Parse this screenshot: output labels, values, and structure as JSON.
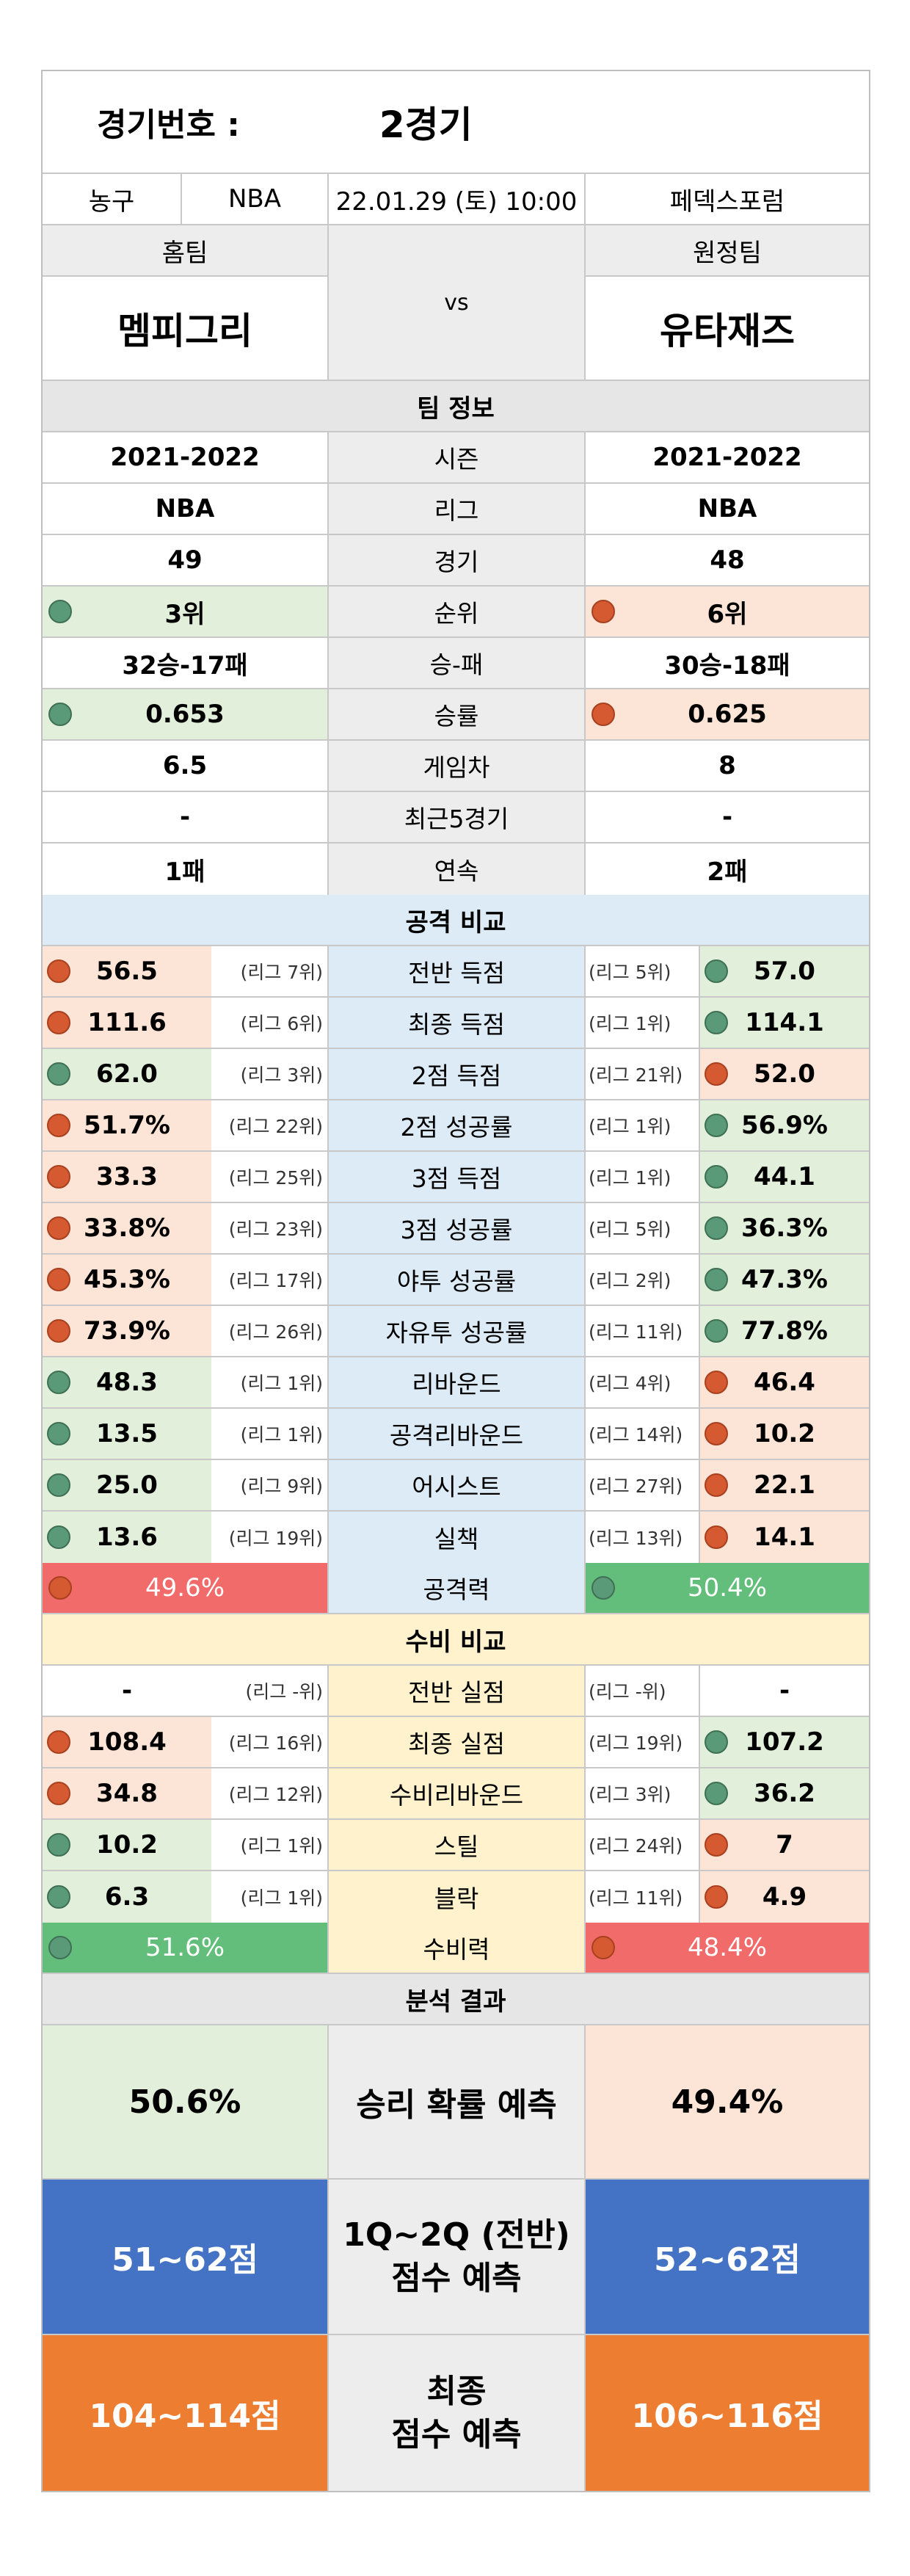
{
  "game": {
    "number_label": "경기번호 :",
    "number_value": "2경기"
  },
  "info": {
    "sport": "농구",
    "league": "NBA",
    "datetime": "22.01.29 (토) 10:00",
    "venue": "페덱스포럼"
  },
  "teams": {
    "home_label": "홈팀",
    "away_label": "원정팀",
    "vs": "vs",
    "home": "멤피그리",
    "away": "유타재즈"
  },
  "team_info": {
    "title": "팀 정보",
    "rows": [
      {
        "label": "시즌",
        "home": "2021-2022",
        "away": "2021-2022"
      },
      {
        "label": "리그",
        "home": "NBA",
        "away": "NBA"
      },
      {
        "label": "경기",
        "home": "49",
        "away": "48"
      },
      {
        "label": "순위",
        "home": "3위",
        "away": "6위",
        "home_mark": "green",
        "away_mark": "red"
      },
      {
        "label": "승-패",
        "home": "32승-17패",
        "away": "30승-18패"
      },
      {
        "label": "승률",
        "home": "0.653",
        "away": "0.625",
        "home_mark": "green",
        "away_mark": "red"
      },
      {
        "label": "게임차",
        "home": "6.5",
        "away": "8"
      },
      {
        "label": "최근5경기",
        "home": "-",
        "away": "-"
      },
      {
        "label": "연속",
        "home": "1패",
        "away": "2패"
      }
    ]
  },
  "attack": {
    "title": "공격 비교",
    "rows": [
      {
        "label": "전반 득점",
        "home": "56.5",
        "home_rank": "(리그 7위)",
        "home_mark": "red",
        "away": "57.0",
        "away_rank": "(리그 5위)",
        "away_mark": "green"
      },
      {
        "label": "최종 득점",
        "home": "111.6",
        "home_rank": "(리그 6위)",
        "home_mark": "red",
        "away": "114.1",
        "away_rank": "(리그 1위)",
        "away_mark": "green"
      },
      {
        "label": "2점 득점",
        "home": "62.0",
        "home_rank": "(리그 3위)",
        "home_mark": "green",
        "away": "52.0",
        "away_rank": "(리그 21위)",
        "away_mark": "red"
      },
      {
        "label": "2점 성공률",
        "home": "51.7%",
        "home_rank": "(리그 22위)",
        "home_mark": "red",
        "away": "56.9%",
        "away_rank": "(리그 1위)",
        "away_mark": "green"
      },
      {
        "label": "3점 득점",
        "home": "33.3",
        "home_rank": "(리그 25위)",
        "home_mark": "red",
        "away": "44.1",
        "away_rank": "(리그 1위)",
        "away_mark": "green"
      },
      {
        "label": "3점 성공률",
        "home": "33.8%",
        "home_rank": "(리그 23위)",
        "home_mark": "red",
        "away": "36.3%",
        "away_rank": "(리그 5위)",
        "away_mark": "green"
      },
      {
        "label": "야투 성공률",
        "home": "45.3%",
        "home_rank": "(리그 17위)",
        "home_mark": "red",
        "away": "47.3%",
        "away_rank": "(리그 2위)",
        "away_mark": "green"
      },
      {
        "label": "자유투 성공률",
        "home": "73.9%",
        "home_rank": "(리그 26위)",
        "home_mark": "red",
        "away": "77.8%",
        "away_rank": "(리그 11위)",
        "away_mark": "green"
      },
      {
        "label": "리바운드",
        "home": "48.3",
        "home_rank": "(리그 1위)",
        "home_mark": "green",
        "away": "46.4",
        "away_rank": "(리그 4위)",
        "away_mark": "red"
      },
      {
        "label": "공격리바운드",
        "home": "13.5",
        "home_rank": "(리그 1위)",
        "home_mark": "green",
        "away": "10.2",
        "away_rank": "(리그 14위)",
        "away_mark": "red"
      },
      {
        "label": "어시스트",
        "home": "25.0",
        "home_rank": "(리그 9위)",
        "home_mark": "green",
        "away": "22.1",
        "away_rank": "(리그 27위)",
        "away_mark": "red"
      },
      {
        "label": "실책",
        "home": "13.6",
        "home_rank": "(리그 19위)",
        "home_mark": "green",
        "away": "14.1",
        "away_rank": "(리그 13위)",
        "away_mark": "red"
      }
    ],
    "power": {
      "label": "공격력",
      "home": "49.6%",
      "away": "50.4%",
      "home_color": "#f26b6b",
      "away_color": "#63be7b"
    }
  },
  "defense": {
    "title": "수비 비교",
    "rows": [
      {
        "label": "전반 실점",
        "home": "-",
        "home_rank": "(리그 -위)",
        "home_mark": "",
        "away": "-",
        "away_rank": "(리그 -위)",
        "away_mark": ""
      },
      {
        "label": "최종 실점",
        "home": "108.4",
        "home_rank": "(리그 16위)",
        "home_mark": "red",
        "away": "107.2",
        "away_rank": "(리그 19위)",
        "away_mark": "green"
      },
      {
        "label": "수비리바운드",
        "home": "34.8",
        "home_rank": "(리그 12위)",
        "home_mark": "red",
        "away": "36.2",
        "away_rank": "(리그 3위)",
        "away_mark": "green"
      },
      {
        "label": "스틸",
        "home": "10.2",
        "home_rank": "(리그 1위)",
        "home_mark": "green",
        "away": "7",
        "away_rank": "(리그 24위)",
        "away_mark": "red"
      },
      {
        "label": "블락",
        "home": "6.3",
        "home_rank": "(리그 1위)",
        "home_mark": "green",
        "away": "4.9",
        "away_rank": "(리그 11위)",
        "away_mark": "red"
      }
    ],
    "power": {
      "label": "수비력",
      "home": "51.6%",
      "away": "48.4%",
      "home_color": "#63be7b",
      "away_color": "#f26b6b"
    }
  },
  "analysis": {
    "title": "분석 결과",
    "win": {
      "label": "승리 확률 예측",
      "home": "50.6%",
      "away": "49.4%"
    },
    "half": {
      "label_line1": "1Q~2Q (전반)",
      "label_line2": "점수 예측",
      "home": "51~62점",
      "away": "52~62점",
      "color": "#4472c4"
    },
    "final": {
      "label_line1": "최종",
      "label_line2": "점수 예측",
      "home": "104~114점",
      "away": "106~116점",
      "color": "#ed7d31"
    }
  },
  "colors": {
    "green_bg": "#e2efda",
    "orange_bg": "#fce4d6",
    "blue_bg": "#ddebf7",
    "yellow_bg": "#fff2cc",
    "gray_bg": "#ededed"
  }
}
